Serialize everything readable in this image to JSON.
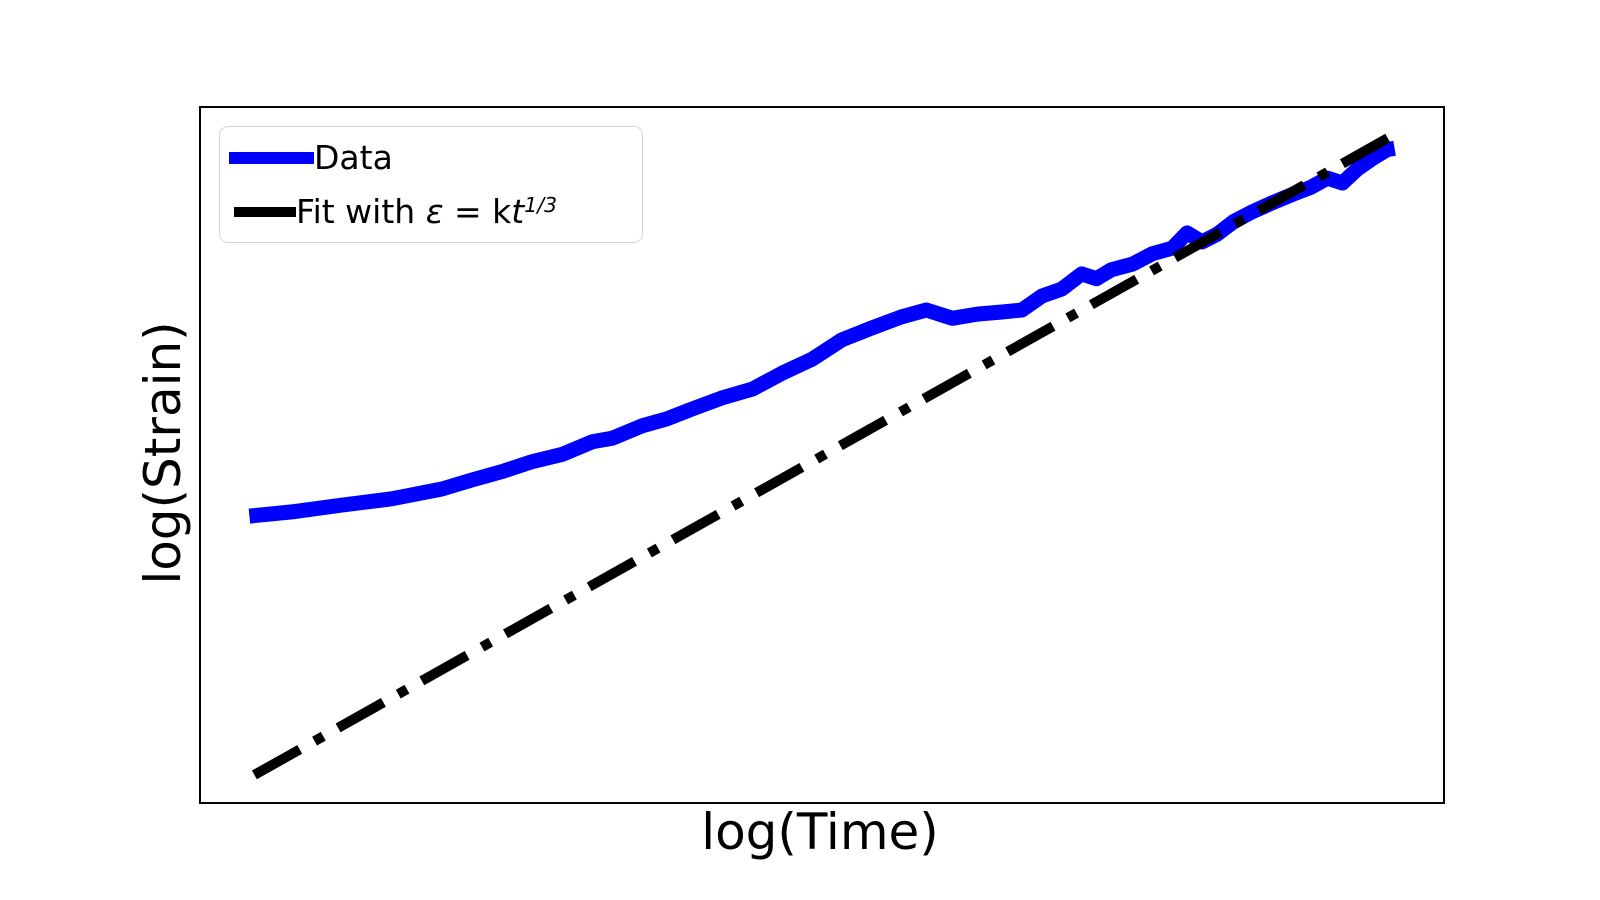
{
  "accent_colors": {
    "data_line": "#0000ff",
    "fit_line": "#000000",
    "legend_border": "#d5d5d5",
    "background": "#ffffff"
  },
  "legend": {
    "items": [
      {
        "label": "Data"
      },
      {
        "label": "Fit with ε = kt^(1/3)"
      }
    ],
    "fit_parts": {
      "prefix": "Fit with ",
      "epsilon": "ε",
      "equals": " = ",
      "k": "k",
      "t": "t",
      "exponent": "1/3"
    }
  },
  "chart_data": {
    "type": "line",
    "title": "",
    "xlabel": "log(Time)",
    "ylabel": "log(Strain)",
    "xlim": [
      0,
      1
    ],
    "ylim": [
      0,
      1
    ],
    "grid": false,
    "ticks_visible": false,
    "legend_position": "upper-left",
    "series": [
      {
        "name": "Data",
        "color": "#0000ff",
        "style": "solid",
        "linewidth": 15,
        "points": [
          [
            0.039,
            0.412
          ],
          [
            0.073,
            0.418
          ],
          [
            0.114,
            0.428
          ],
          [
            0.154,
            0.437
          ],
          [
            0.194,
            0.451
          ],
          [
            0.218,
            0.464
          ],
          [
            0.242,
            0.476
          ],
          [
            0.266,
            0.49
          ],
          [
            0.291,
            0.501
          ],
          [
            0.315,
            0.519
          ],
          [
            0.331,
            0.524
          ],
          [
            0.355,
            0.542
          ],
          [
            0.375,
            0.552
          ],
          [
            0.395,
            0.566
          ],
          [
            0.419,
            0.582
          ],
          [
            0.444,
            0.595
          ],
          [
            0.468,
            0.618
          ],
          [
            0.492,
            0.638
          ],
          [
            0.516,
            0.666
          ],
          [
            0.54,
            0.683
          ],
          [
            0.564,
            0.699
          ],
          [
            0.584,
            0.709
          ],
          [
            0.605,
            0.697
          ],
          [
            0.625,
            0.703
          ],
          [
            0.645,
            0.706
          ],
          [
            0.661,
            0.709
          ],
          [
            0.677,
            0.729
          ],
          [
            0.693,
            0.739
          ],
          [
            0.709,
            0.761
          ],
          [
            0.721,
            0.754
          ],
          [
            0.733,
            0.767
          ],
          [
            0.75,
            0.775
          ],
          [
            0.766,
            0.79
          ],
          [
            0.782,
            0.798
          ],
          [
            0.794,
            0.82
          ],
          [
            0.806,
            0.807
          ],
          [
            0.818,
            0.818
          ],
          [
            0.832,
            0.837
          ],
          [
            0.846,
            0.85
          ],
          [
            0.862,
            0.863
          ],
          [
            0.878,
            0.875
          ],
          [
            0.894,
            0.886
          ],
          [
            0.907,
            0.899
          ],
          [
            0.919,
            0.892
          ],
          [
            0.931,
            0.912
          ],
          [
            0.943,
            0.927
          ],
          [
            0.955,
            0.94
          ],
          [
            0.961,
            0.942
          ]
        ]
      },
      {
        "name": "Fit with ε = kt^(1/3)",
        "color": "#000000",
        "style": "dashdot",
        "linewidth": 10,
        "points": [
          [
            0.043,
            0.039
          ],
          [
            0.956,
            0.957
          ]
        ]
      }
    ]
  }
}
